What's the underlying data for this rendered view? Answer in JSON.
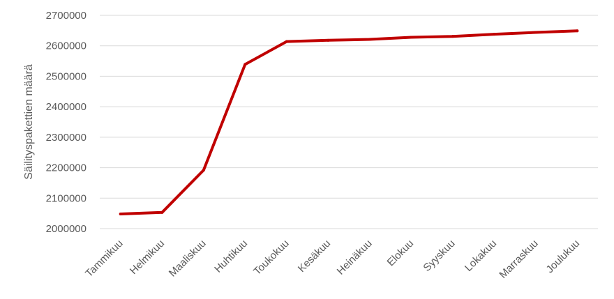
{
  "chart_data": {
    "type": "line",
    "title": "",
    "xlabel": "",
    "ylabel": "Säilityspakettien määrä",
    "categories": [
      "Tammikuu",
      "Helmikuu",
      "Maaliskuu",
      "Huhtikuu",
      "Toukokuu",
      "Kesäkuu",
      "Heinäkuu",
      "Elokuu",
      "Syyskuu",
      "Lokakuu",
      "Marraskuu",
      "Joulukuu"
    ],
    "series": [
      {
        "values": [
          2048000,
          2053000,
          2192000,
          2539000,
          2614000,
          2618000,
          2621000,
          2628000,
          2631000,
          2638000,
          2644000,
          2649000
        ],
        "color": "#c00000"
      }
    ],
    "ylim": [
      2000000,
      2700000
    ],
    "yticks": [
      "2000000",
      "2100000",
      "2200000",
      "2300000",
      "2400000",
      "2500000",
      "2600000",
      "2700000"
    ],
    "grid": true,
    "legend": "none"
  }
}
